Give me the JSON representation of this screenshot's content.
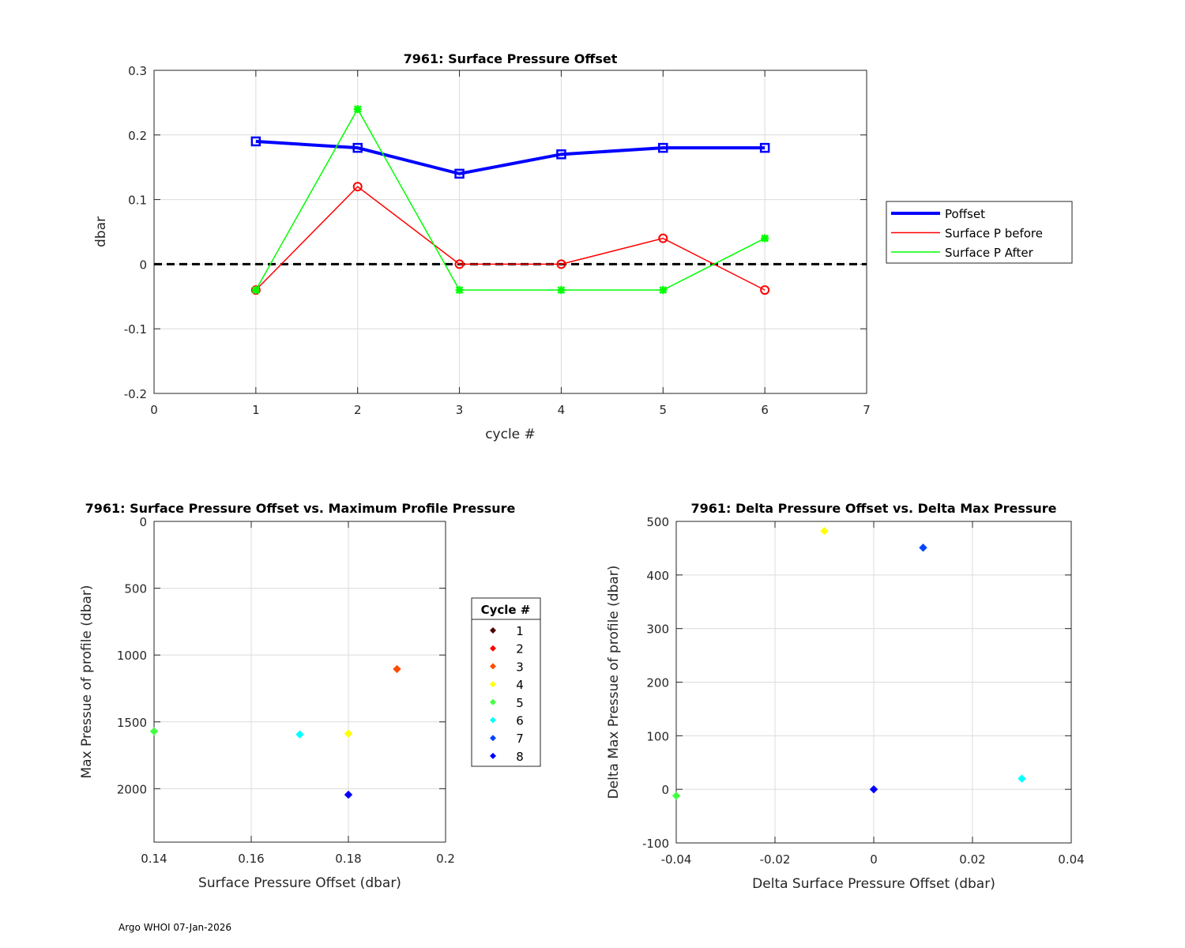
{
  "chart_data": [
    {
      "type": "line",
      "title": "7961: Surface Pressure Offset",
      "xlabel": "cycle #",
      "ylabel": "dbar",
      "xlim": [
        0,
        7
      ],
      "ylim": [
        -0.2,
        0.3
      ],
      "xticks": [
        0,
        1,
        2,
        3,
        4,
        5,
        6,
        7
      ],
      "yticks": [
        -0.2,
        -0.1,
        0,
        0.1,
        0.2,
        0.3
      ],
      "grid": true,
      "legend_placement": "outside-right",
      "x": [
        1,
        2,
        3,
        4,
        5,
        6
      ],
      "series": [
        {
          "name": "Poffset",
          "values": [
            0.19,
            0.18,
            0.14,
            0.17,
            0.18,
            0.18
          ],
          "color": "#0000ff",
          "marker": "square"
        },
        {
          "name": "Surface P before",
          "values": [
            -0.04,
            0.12,
            0,
            0,
            0.04,
            -0.04
          ],
          "color": "#ff0000",
          "marker": "circle"
        },
        {
          "name": "Surface P After",
          "values": [
            -0.04,
            0.24,
            -0.04,
            -0.04,
            -0.04,
            0.04
          ],
          "color": "#00ff00",
          "marker": "asterisk"
        }
      ],
      "reference_line": {
        "y": 0,
        "style": "dashed",
        "color": "#000000"
      }
    },
    {
      "type": "scatter",
      "title": "7961: Surface Pressure Offset vs. Maximum Profile Pressure",
      "xlabel": "Surface Pressure Offset (dbar)",
      "ylabel": "Max Pressue of profile (dbar)",
      "xlim": [
        0.14,
        0.2
      ],
      "ylim": [
        0,
        2400
      ],
      "y_reversed": true,
      "xticks": [
        0.14,
        0.16,
        0.18,
        0.2
      ],
      "yticks": [
        0,
        500,
        1000,
        1500,
        2000
      ],
      "grid": true,
      "legend_title": "Cycle #",
      "legend_placement": "outside-right",
      "legend": [
        {
          "label": "1",
          "color": "#4d0000"
        },
        {
          "label": "2",
          "color": "#ff0000"
        },
        {
          "label": "3",
          "color": "#ff4d00"
        },
        {
          "label": "4",
          "color": "#ffff00"
        },
        {
          "label": "5",
          "color": "#44ff44"
        },
        {
          "label": "6",
          "color": "#00ffff"
        },
        {
          "label": "7",
          "color": "#0044ff"
        },
        {
          "label": "8",
          "color": "#0000ff"
        }
      ],
      "points": [
        {
          "cycle": "3",
          "x": 0.19,
          "y": 1105,
          "color": "#ff4d00"
        },
        {
          "cycle": "4",
          "x": 0.18,
          "y": 1588,
          "color": "#ffff00"
        },
        {
          "cycle": "5",
          "x": 0.14,
          "y": 1571,
          "color": "#44ff44"
        },
        {
          "cycle": "6",
          "x": 0.17,
          "y": 1594,
          "color": "#00ffff"
        },
        {
          "cycle": "8",
          "x": 0.18,
          "y": 2045,
          "color": "#0000ff"
        }
      ]
    },
    {
      "type": "scatter",
      "title": "7961: Delta Pressure Offset vs. Delta Max Pressure",
      "xlabel": "Delta Surface Pressure Offset (dbar)",
      "ylabel": "Delta Max Pressue of profile (dbar)",
      "xlim": [
        -0.04,
        0.04
      ],
      "ylim": [
        -100,
        500
      ],
      "xticks": [
        -0.04,
        -0.02,
        0,
        0.02,
        0.04
      ],
      "yticks": [
        -100,
        0,
        100,
        200,
        300,
        400,
        500
      ],
      "grid": true,
      "points": [
        {
          "x": -0.04,
          "y": -12,
          "color": "#44ff44"
        },
        {
          "x": -0.01,
          "y": 482,
          "color": "#ffff00"
        },
        {
          "x": 0.01,
          "y": 451,
          "color": "#0044ff"
        },
        {
          "x": 0,
          "y": 0,
          "color": "#0000ff"
        },
        {
          "x": 0.03,
          "y": 20,
          "color": "#00ffff"
        }
      ]
    }
  ],
  "footer": "Argo WHOI 07-Jan-2026"
}
